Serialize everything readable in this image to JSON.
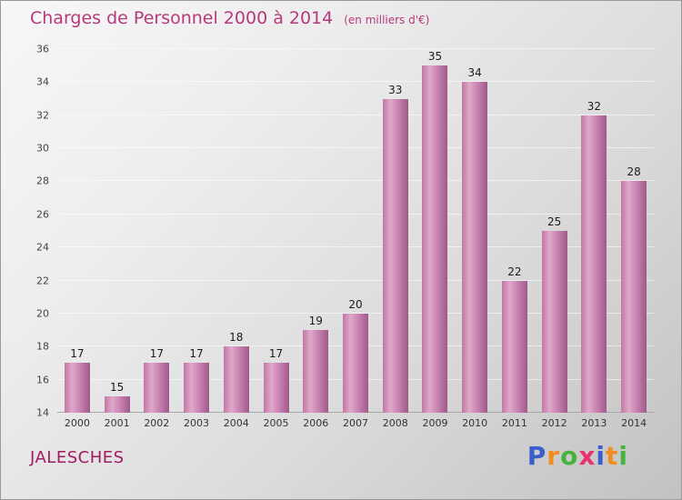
{
  "chart_data": {
    "type": "bar",
    "title": "Charges de Personnel 2000 à 2014",
    "subtitle": "(en milliers d'€)",
    "categories": [
      "2000",
      "2001",
      "2002",
      "2003",
      "2004",
      "2005",
      "2006",
      "2007",
      "2008",
      "2009",
      "2010",
      "2011",
      "2012",
      "2013",
      "2014"
    ],
    "values": [
      17,
      15,
      17,
      17,
      18,
      17,
      19,
      20,
      33,
      35,
      34,
      22,
      25,
      32,
      28
    ],
    "xlabel": "",
    "ylabel": "",
    "ylim": [
      14,
      36
    ],
    "ytick_step": 2,
    "grid": true,
    "legend": "none",
    "bar_colors": {
      "left": "#c177a5",
      "highlight": "#dfa8c9",
      "mid": "#c57eae",
      "right": "#9e5a88"
    }
  },
  "footer": {
    "location": "JALESCHES",
    "logo_letters": [
      {
        "ch": "P",
        "color": "#3a5fcd"
      },
      {
        "ch": "r",
        "color": "#f28c1e"
      },
      {
        "ch": "o",
        "color": "#46b43c"
      },
      {
        "ch": "x",
        "color": "#e8326e"
      },
      {
        "ch": "i",
        "color": "#3a5fcd"
      },
      {
        "ch": "t",
        "color": "#f28c1e"
      },
      {
        "ch": "i",
        "color": "#46b43c"
      }
    ]
  },
  "colors": {
    "title_text": "#b5397c",
    "location_text": "#a01b60",
    "axis_text": "#444444",
    "value_text": "#1b1b1b"
  }
}
